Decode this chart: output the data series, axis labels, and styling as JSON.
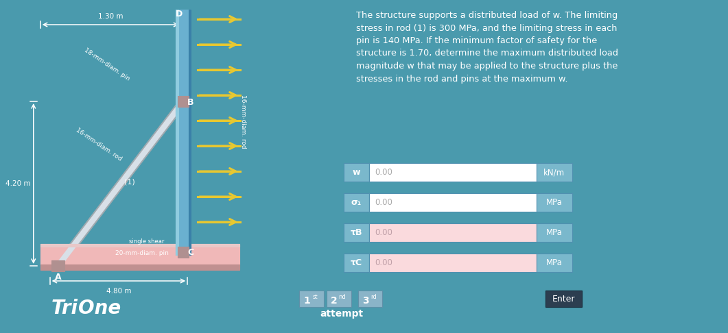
{
  "bg_color": "#4a9aad",
  "title_text": "The structure supports a distributed load of w. The limiting\nstress in rod (1) is 300 MPa, and the limiting stress in each\npin is 140 MPa. If the minimum factor of safety for the\nstructure is 1.70, determine the maximum distributed load\nmagnitude w that may be applied to the structure plus the\nstresses in the rod and pins at the maximum w.",
  "title_fontsize": 9.3,
  "title_color": "white",
  "dim_1_30": "1.30 m",
  "dim_4_20": "4.20 m",
  "dim_4_80": "4.80 m",
  "label_D": "D",
  "label_B": "B",
  "label_C": "C",
  "label_A": "A",
  "label_1": "(1)",
  "label_18mm": "18-mm-diam. pin",
  "label_16mm_left": "16-mm-diam. rod",
  "label_16mm_right": "16-mm-diam. rod",
  "label_single_shear": "single shear",
  "label_20mm": "20-mm-diam. pin",
  "try_text": "Tri",
  "one_text": "One",
  "fields": [
    {
      "label": "w",
      "value": "0.00",
      "unit": "kN/m",
      "input_bg": "#ffffff"
    },
    {
      "label": "σ₁",
      "value": "0.00",
      "unit": "MPa",
      "input_bg": "#ffffff"
    },
    {
      "label": "τB",
      "value": "0.00",
      "unit": "MPa",
      "input_bg": "#fadadd"
    },
    {
      "label": "τC",
      "value": "0.00",
      "unit": "MPa",
      "input_bg": "#fadadd"
    }
  ],
  "attempt_labels": [
    "1st",
    "2nd",
    "3rd"
  ],
  "enter_label": "Enter",
  "struct_color_pink": "#f0b8b8",
  "arrow_color": "#e8c830",
  "rod_color": "#d8e0e8",
  "vertical_bar_color": "#6ab0d0",
  "label_bg": "#7ab8cc",
  "unit_bg": "#7ab8cc",
  "enter_bg": "#2c3e50",
  "btn_bg": "#8ab4c8"
}
